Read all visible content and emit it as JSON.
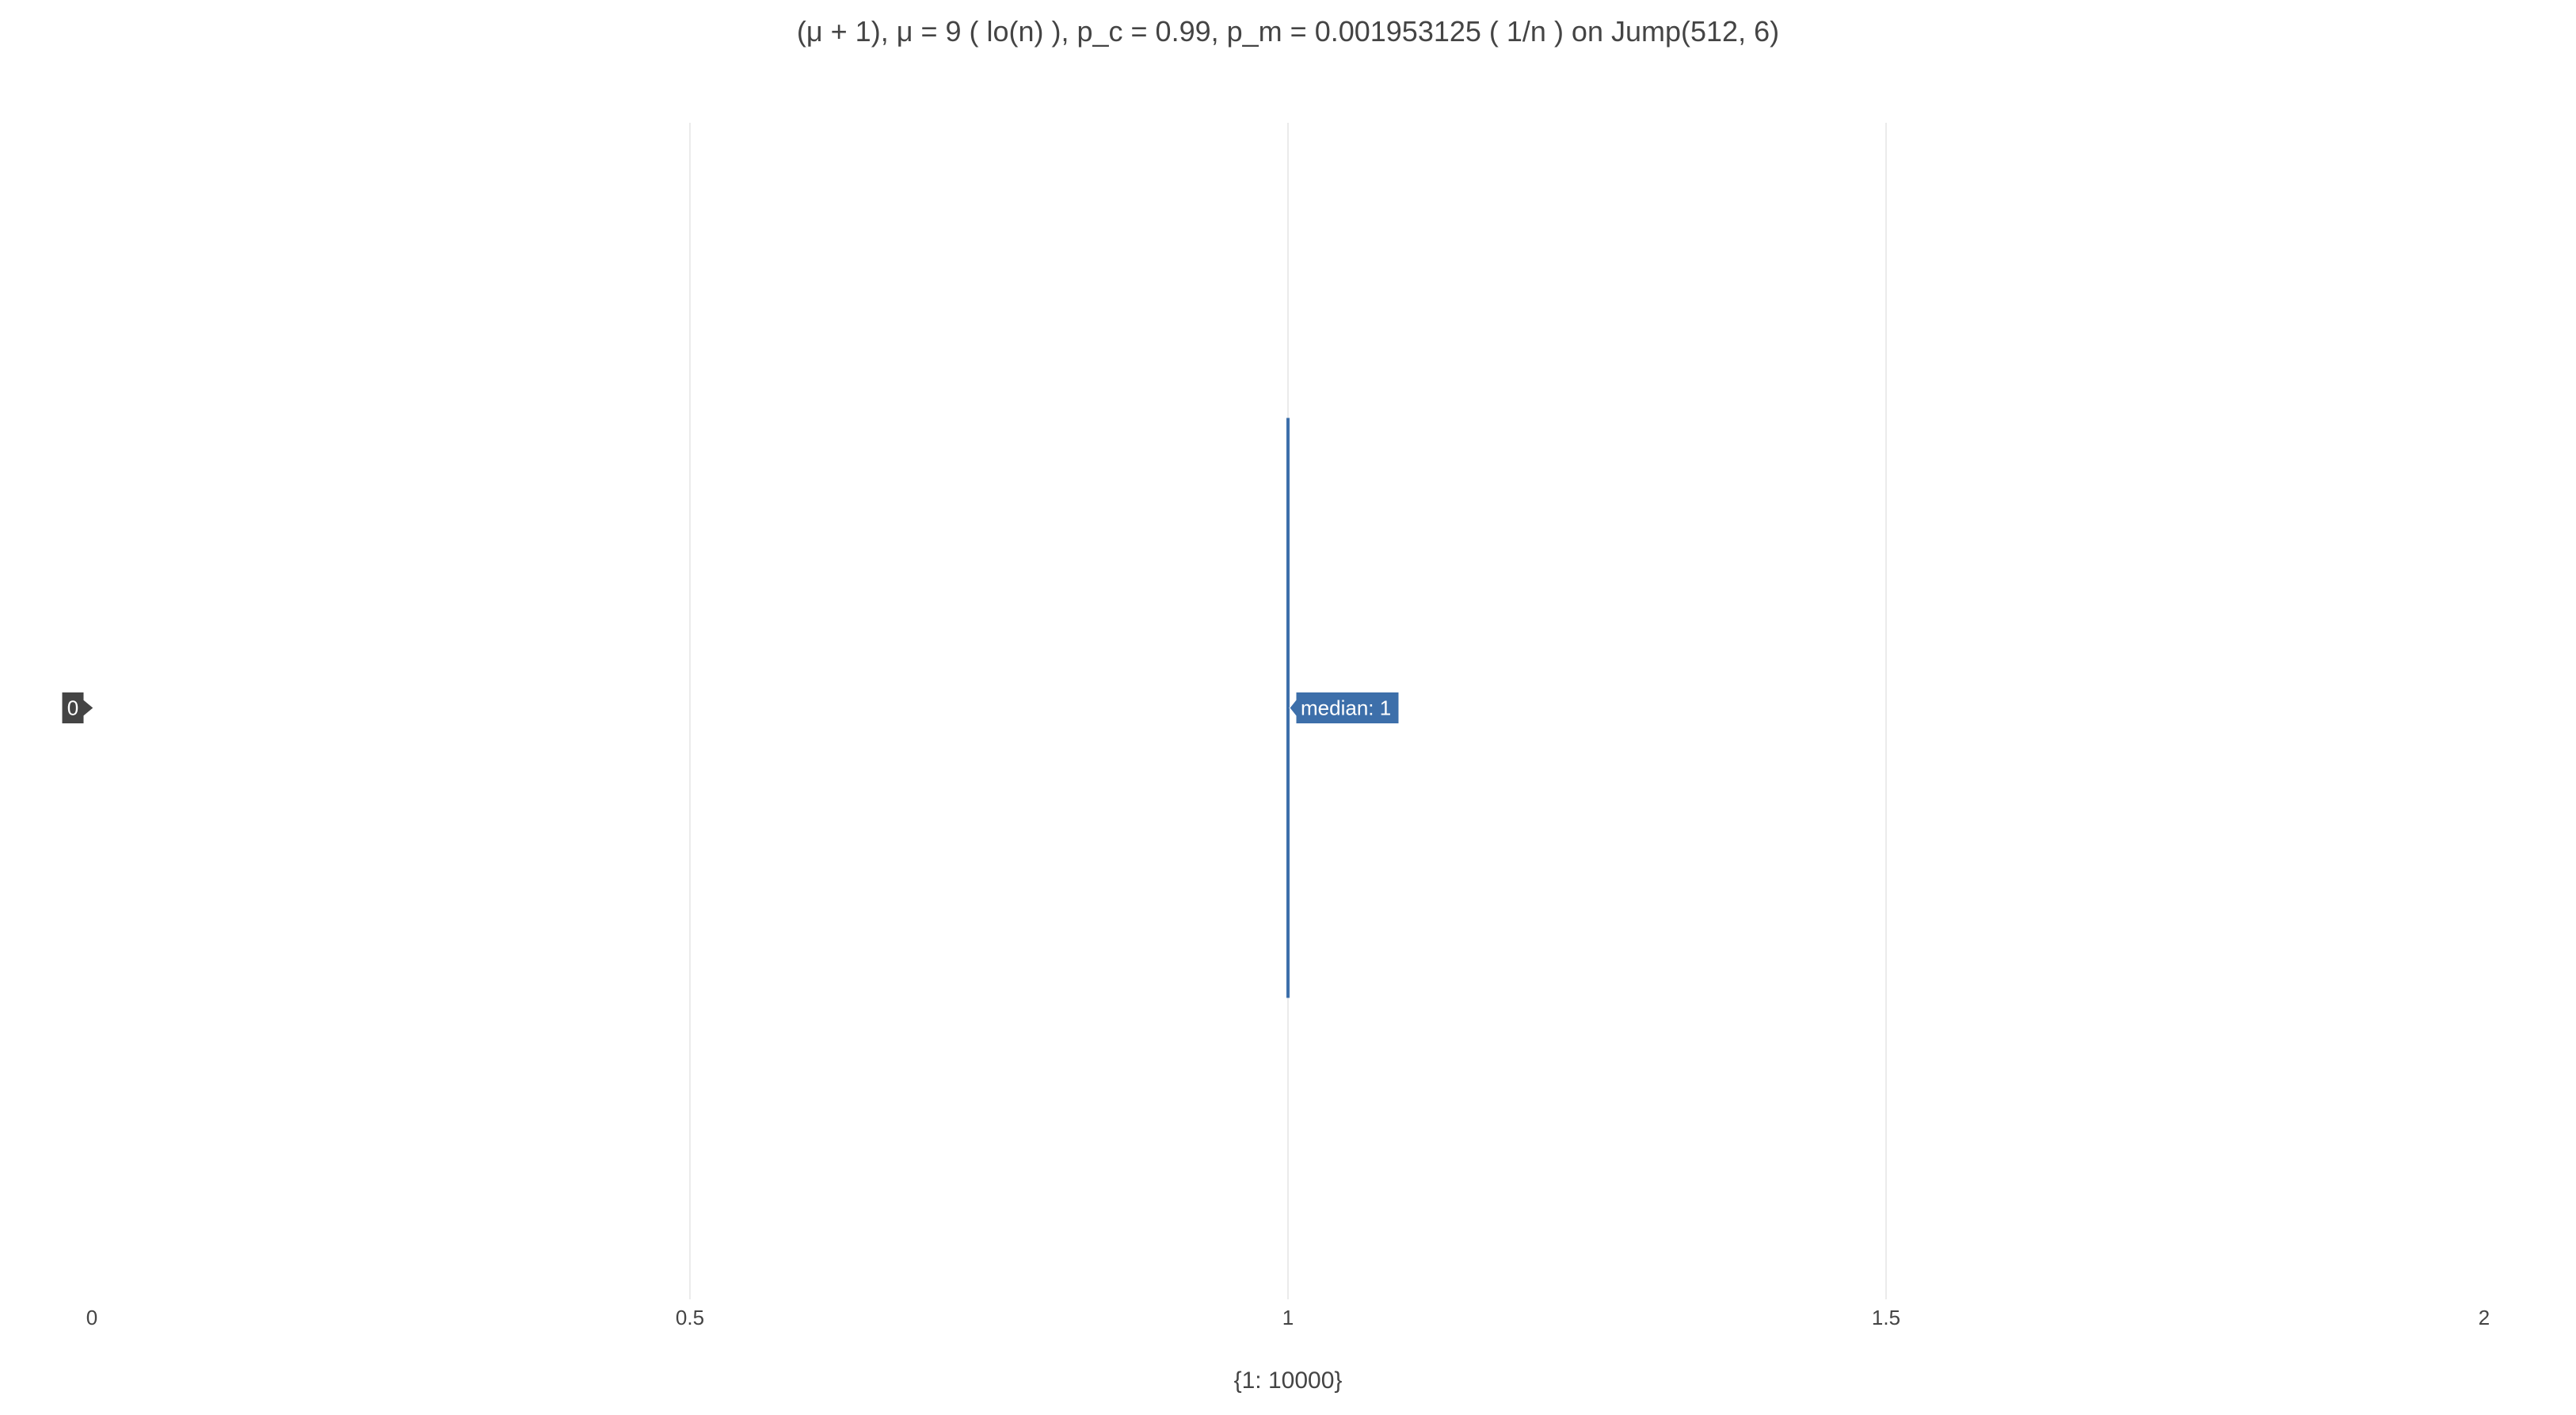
{
  "chart_data": {
    "type": "box",
    "title": "(μ + 1), μ = 9 ( lo(n) ), p_c = 0.99, p_m = 0.001953125 ( 1/n ) on Jump(512, 6)",
    "xlabel": "{1: 10000}",
    "ylabel": "",
    "orientation": "horizontal",
    "xlim": [
      0,
      2
    ],
    "x_ticks": [
      "0",
      "0.5",
      "1",
      "1.5",
      "2"
    ],
    "x_tick_values": [
      0,
      0.5,
      1,
      1.5,
      2
    ],
    "categories": [
      "0"
    ],
    "grid": true,
    "series": [
      {
        "category": "0",
        "min": 1,
        "q1": 1,
        "median": 1,
        "q3": 1,
        "max": 1,
        "color": "#3d6faa"
      }
    ],
    "hover": {
      "median_label": "median: 1",
      "category_label": "0"
    }
  },
  "colors": {
    "box": "#3d6faa",
    "grid": "#ebebeb",
    "category_badge": "#444444"
  }
}
